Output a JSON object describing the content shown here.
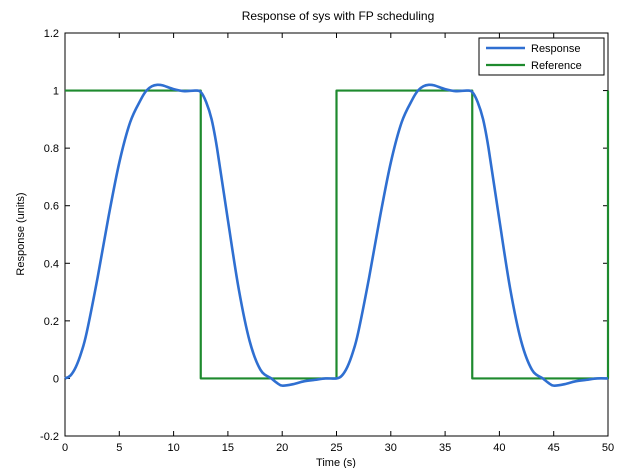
{
  "chart_data": {
    "type": "line",
    "title": "Response of sys with FP scheduling",
    "xlabel": "Time (s)",
    "ylabel": "Response (units)",
    "xlim": [
      0,
      50
    ],
    "ylim": [
      -0.2,
      1.2
    ],
    "x_ticks": [
      0,
      5,
      10,
      15,
      20,
      25,
      30,
      35,
      40,
      45,
      50
    ],
    "y_ticks": [
      -0.2,
      0,
      0.2,
      0.4,
      0.6,
      0.8,
      1,
      1.2
    ],
    "grid": false,
    "legend_position": "top-right",
    "series": [
      {
        "name": "Response",
        "color": "#2F6FD1",
        "x": [
          0,
          0.5,
          1,
          1.5,
          2,
          3,
          4,
          5,
          6,
          7,
          7.5,
          8,
          8.5,
          9,
          10,
          11,
          12,
          12.5,
          13,
          13.5,
          14,
          15,
          16,
          17,
          18,
          19,
          19.5,
          20,
          21,
          22,
          23,
          24,
          25,
          25.5,
          26,
          26.5,
          27,
          28,
          29,
          30,
          31,
          32,
          32.5,
          33,
          33.5,
          34,
          35,
          36,
          37,
          37.5,
          38,
          38.5,
          39,
          40,
          41,
          42,
          43,
          44,
          44.5,
          45,
          46,
          47,
          48,
          49,
          50
        ],
        "y": [
          0,
          0.01,
          0.04,
          0.09,
          0.16,
          0.35,
          0.56,
          0.75,
          0.89,
          0.97,
          1.0,
          1.015,
          1.02,
          1.018,
          1.005,
          0.998,
          1.0,
          0.995,
          0.96,
          0.9,
          0.8,
          0.55,
          0.31,
          0.13,
          0.03,
          0.0,
          -0.015,
          -0.025,
          -0.02,
          -0.01,
          -0.005,
          0.0,
          0.0,
          0.01,
          0.04,
          0.09,
          0.16,
          0.35,
          0.56,
          0.75,
          0.89,
          0.97,
          1.0,
          1.015,
          1.02,
          1.018,
          1.005,
          0.998,
          1.0,
          0.995,
          0.96,
          0.9,
          0.8,
          0.55,
          0.31,
          0.13,
          0.03,
          0.0,
          -0.015,
          -0.025,
          -0.02,
          -0.01,
          -0.005,
          0.0,
          0.0
        ]
      },
      {
        "name": "Reference",
        "color": "#1E8A2E",
        "x": [
          0,
          12.5,
          12.5,
          25,
          25,
          37.5,
          37.5,
          50,
          50
        ],
        "y": [
          1,
          1,
          0,
          0,
          1,
          1,
          0,
          0,
          1
        ]
      }
    ]
  }
}
